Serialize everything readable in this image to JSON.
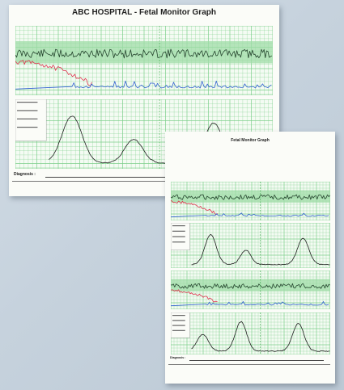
{
  "sheet_front": {
    "title": "ABC  HOSPITAL - Fetal Monitor Graph",
    "diagnosis_label": "Diagnosis :"
  },
  "sheet_back": {
    "title": "Fetal Monitor Graph",
    "diagnosis_label": "Diagnosis :"
  },
  "colors": {
    "grid_green": "#7ccf8a",
    "band_green": "#9fdca7",
    "trace_dark": "#25452e",
    "trace_red": "#e0334f",
    "trace_blue": "#2f5fd0",
    "contraction": "#1d1d1d"
  }
}
